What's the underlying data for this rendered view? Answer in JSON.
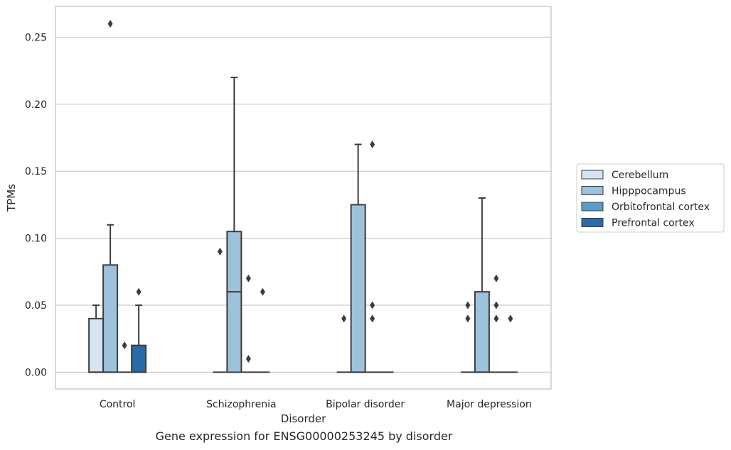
{
  "caption": "Gene expression for ENSG00000253245 by disorder",
  "chart_data": {
    "type": "box",
    "xlabel": "Disorder",
    "ylabel": "TPMs",
    "ylim": [
      -0.0125,
      0.273
    ],
    "yticks": [
      0.0,
      0.05,
      0.1,
      0.15,
      0.2,
      0.25
    ],
    "ytick_labels": [
      "0.00",
      "0.05",
      "0.10",
      "0.15",
      "0.20",
      "0.25"
    ],
    "grid": "horizontal",
    "legend_position": "right",
    "categories": [
      "Control",
      "Schizophrenia",
      "Bipolar disorder",
      "Major depression"
    ],
    "series": [
      {
        "name": "Cerebellum",
        "color": "#d6e4f2",
        "boxes": [
          {
            "category": "Control",
            "q1": 0.0,
            "median": 0.0,
            "q3": 0.04,
            "whisker_low": 0.0,
            "whisker_high": 0.05,
            "outliers": []
          },
          {
            "category": "Schizophrenia",
            "q1": 0.0,
            "median": 0.0,
            "q3": 0.0,
            "whisker_low": 0.0,
            "whisker_high": 0.0,
            "outliers": [
              0.09
            ]
          },
          {
            "category": "Bipolar disorder",
            "q1": 0.0,
            "median": 0.0,
            "q3": 0.0,
            "whisker_low": 0.0,
            "whisker_high": 0.0,
            "outliers": [
              0.04
            ]
          },
          {
            "category": "Major depression",
            "q1": 0.0,
            "median": 0.0,
            "q3": 0.0,
            "whisker_low": 0.0,
            "whisker_high": 0.0,
            "outliers": [
              0.05,
              0.04
            ]
          }
        ]
      },
      {
        "name": "Hipppocampus",
        "color": "#9dc3dc",
        "boxes": [
          {
            "category": "Control",
            "q1": 0.0,
            "median": 0.0,
            "q3": 0.08,
            "whisker_low": 0.0,
            "whisker_high": 0.11,
            "outliers": [
              0.26
            ]
          },
          {
            "category": "Schizophrenia",
            "q1": 0.0,
            "median": 0.06,
            "q3": 0.105,
            "whisker_low": 0.0,
            "whisker_high": 0.22,
            "outliers": []
          },
          {
            "category": "Bipolar disorder",
            "q1": 0.0,
            "median": 0.0,
            "q3": 0.125,
            "whisker_low": 0.0,
            "whisker_high": 0.17,
            "outliers": []
          },
          {
            "category": "Major depression",
            "q1": 0.0,
            "median": 0.0,
            "q3": 0.06,
            "whisker_low": 0.0,
            "whisker_high": 0.13,
            "outliers": []
          }
        ]
      },
      {
        "name": "Orbitofrontal cortex",
        "color": "#5b9ac9",
        "boxes": [
          {
            "category": "Control",
            "q1": 0.0,
            "median": 0.0,
            "q3": 0.0,
            "whisker_low": 0.0,
            "whisker_high": 0.0,
            "outliers": [
              0.02
            ]
          },
          {
            "category": "Schizophrenia",
            "q1": 0.0,
            "median": 0.0,
            "q3": 0.0,
            "whisker_low": 0.0,
            "whisker_high": 0.0,
            "outliers": [
              0.07,
              0.01
            ]
          },
          {
            "category": "Bipolar disorder",
            "q1": 0.0,
            "median": 0.0,
            "q3": 0.0,
            "whisker_low": 0.0,
            "whisker_high": 0.0,
            "outliers": [
              0.17,
              0.05,
              0.04
            ]
          },
          {
            "category": "Major depression",
            "q1": 0.0,
            "median": 0.0,
            "q3": 0.0,
            "whisker_low": 0.0,
            "whisker_high": 0.0,
            "outliers": [
              0.07,
              0.05,
              0.04
            ]
          }
        ]
      },
      {
        "name": "Prefrontal cortex",
        "color": "#2a6aa8",
        "boxes": [
          {
            "category": "Control",
            "q1": 0.0,
            "median": 0.0,
            "q3": 0.02,
            "whisker_low": 0.0,
            "whisker_high": 0.05,
            "outliers": [
              0.06
            ]
          },
          {
            "category": "Schizophrenia",
            "q1": 0.0,
            "median": 0.0,
            "q3": 0.0,
            "whisker_low": 0.0,
            "whisker_high": 0.0,
            "outliers": [
              0.06
            ]
          },
          {
            "category": "Bipolar disorder",
            "q1": 0.0,
            "median": 0.0,
            "q3": 0.0,
            "whisker_low": 0.0,
            "whisker_high": 0.0,
            "outliers": []
          },
          {
            "category": "Major depression",
            "q1": 0.0,
            "median": 0.0,
            "q3": 0.0,
            "whisker_low": 0.0,
            "whisker_high": 0.0,
            "outliers": [
              0.04
            ]
          }
        ]
      }
    ]
  }
}
